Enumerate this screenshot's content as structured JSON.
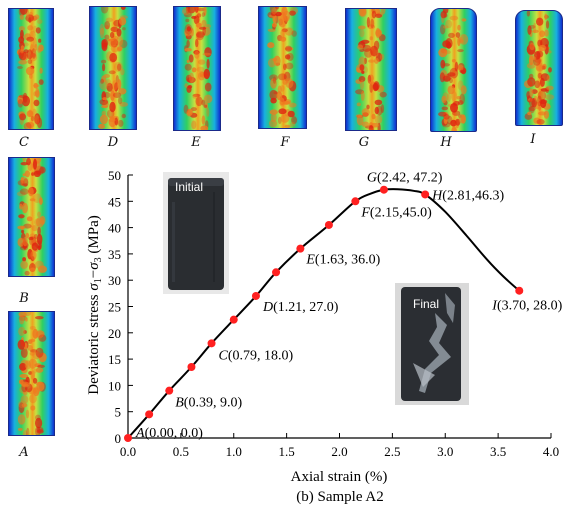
{
  "thumbnails": [
    {
      "label": "C"
    },
    {
      "label": "D"
    },
    {
      "label": "E"
    },
    {
      "label": "F"
    },
    {
      "label": "G"
    },
    {
      "label": "H"
    },
    {
      "label": "I"
    },
    {
      "label": "B"
    },
    {
      "label": "A"
    }
  ],
  "photos": {
    "initial": "Initial",
    "final": "Final"
  },
  "colors": {
    "curve": "#000000",
    "marker": "#ff2020",
    "heat_low": "#1030d0",
    "heat_mid": "#30d060",
    "heat_high": "#e02010"
  },
  "chart_data": {
    "type": "line",
    "caption": "(b) Sample A2",
    "xlabel": "Axial strain (%)",
    "ylabel_parts": {
      "prefix": "Deviatoric stress ",
      "s1": "σ",
      "sub1": "1",
      "dash": "−",
      "s3": "σ",
      "sub3": "3",
      "unit": " (MPa)"
    },
    "xlim": [
      0.0,
      4.0
    ],
    "ylim": [
      0,
      50
    ],
    "xticks": [
      "0.0",
      "0.5",
      "1.0",
      "1.5",
      "2.0",
      "2.5",
      "3.0",
      "3.5",
      "4.0"
    ],
    "yticks": [
      "0",
      "5",
      "10",
      "15",
      "20",
      "25",
      "30",
      "35",
      "40",
      "45",
      "50"
    ],
    "curve": {
      "x": [
        0.0,
        0.2,
        0.39,
        0.6,
        0.79,
        1.0,
        1.21,
        1.4,
        1.63,
        1.9,
        2.15,
        2.3,
        2.42,
        2.55,
        2.7,
        2.81,
        3.0,
        3.2,
        3.4,
        3.55,
        3.7
      ],
      "y": [
        0.0,
        4.5,
        9.0,
        13.5,
        18.0,
        22.5,
        27.0,
        31.5,
        36.0,
        40.5,
        45.0,
        46.5,
        47.2,
        47.3,
        47.0,
        46.3,
        43.0,
        38.5,
        33.8,
        30.7,
        28.0
      ]
    },
    "markers": {
      "x": [
        0.0,
        0.2,
        0.39,
        0.6,
        0.79,
        1.0,
        1.21,
        1.4,
        1.63,
        1.9,
        2.15,
        2.42,
        2.81,
        3.7
      ],
      "y": [
        0.0,
        4.5,
        9.0,
        13.5,
        18.0,
        22.5,
        27.0,
        31.5,
        36.0,
        40.5,
        45.0,
        47.2,
        46.3,
        28.0
      ]
    },
    "annotations": [
      {
        "id": "A",
        "x": 0.0,
        "y": 0.0,
        "text": "(0.00, 0.0)"
      },
      {
        "id": "B",
        "x": 0.39,
        "y": 9.0,
        "text": "(0.39, 9.0)"
      },
      {
        "id": "C",
        "x": 0.79,
        "y": 18.0,
        "text": "(0.79, 18.0)"
      },
      {
        "id": "D",
        "x": 1.21,
        "y": 27.0,
        "text": "(1.21, 27.0)"
      },
      {
        "id": "E",
        "x": 1.63,
        "y": 36.0,
        "text": "(1.63, 36.0)"
      },
      {
        "id": "F",
        "x": 2.15,
        "y": 45.0,
        "text": "(2.15,45.0)"
      },
      {
        "id": "G",
        "x": 2.42,
        "y": 47.2,
        "text": "(2.42, 47.2)"
      },
      {
        "id": "H",
        "x": 2.81,
        "y": 46.3,
        "text": "(2.81,46.3)"
      },
      {
        "id": "I",
        "x": 3.7,
        "y": 28.0,
        "text": "(3.70, 28.0)"
      }
    ]
  }
}
